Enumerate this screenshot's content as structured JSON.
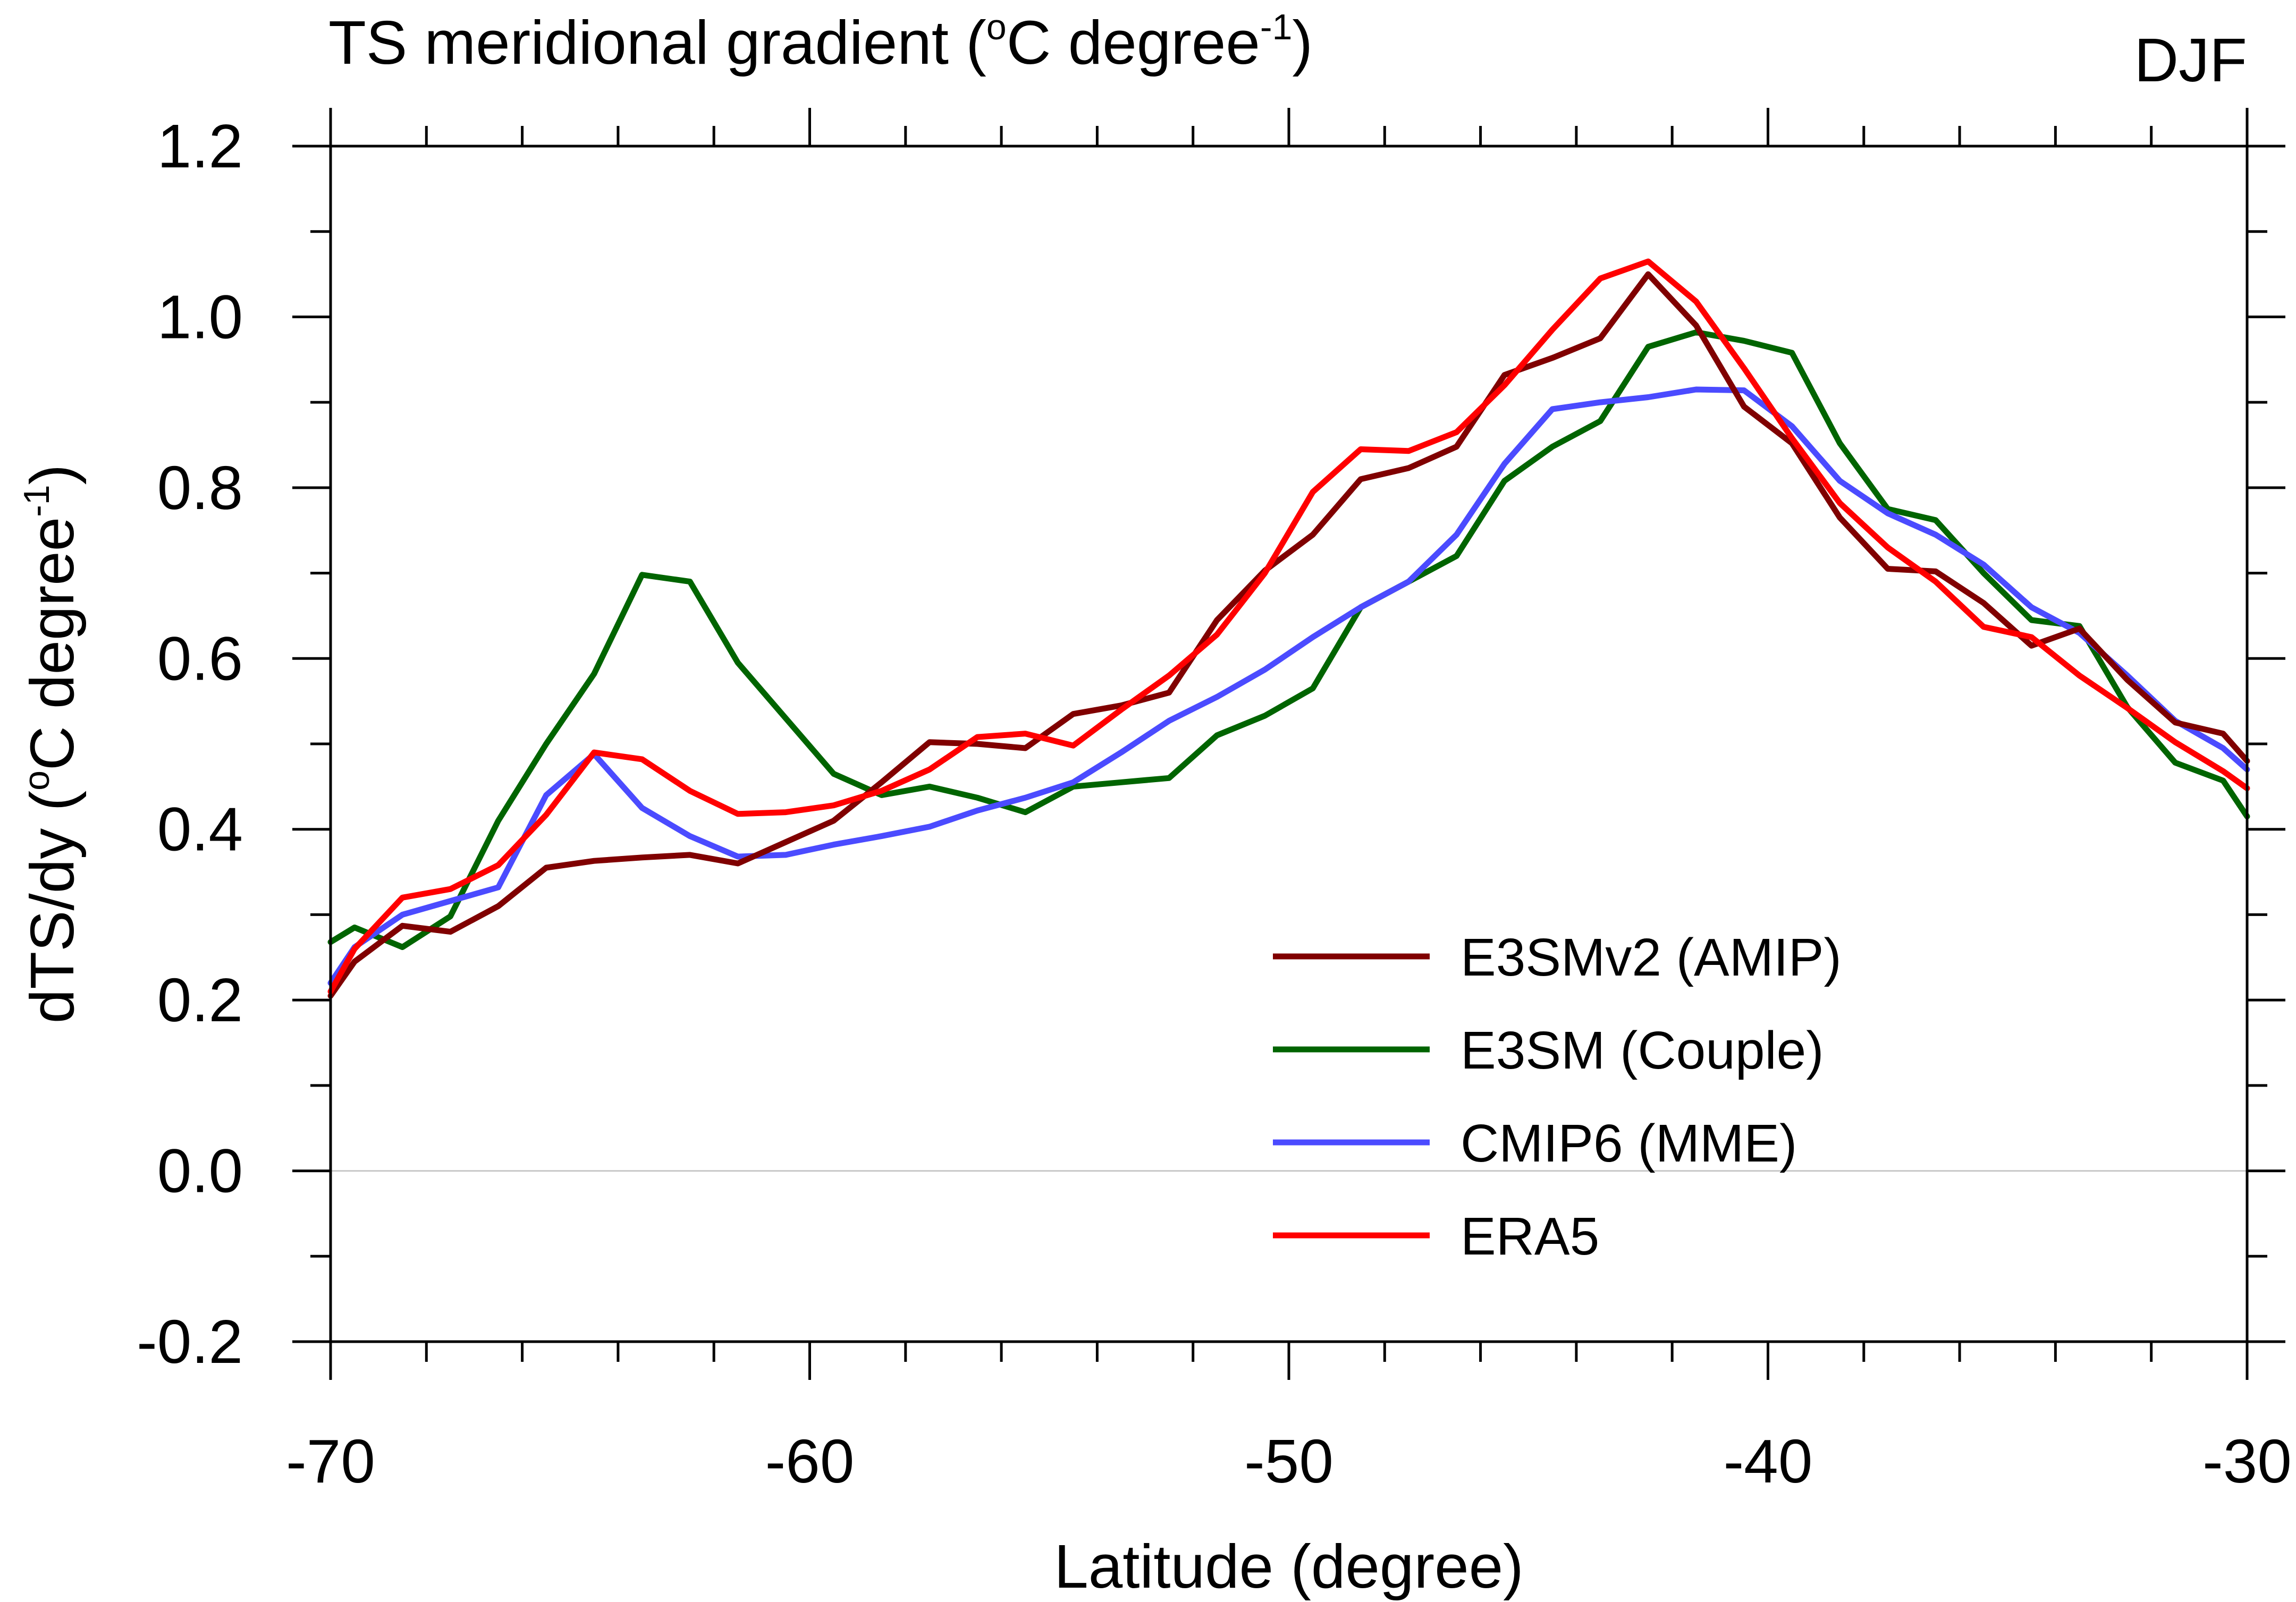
{
  "chart_data": {
    "type": "line",
    "title": "TS meridional gradient (°C degree-1)",
    "title_parts": {
      "prefix": "TS meridional gradient (",
      "degree_sup": "o",
      "mid": "C degree",
      "exp_sup": "-1",
      "suffix": ")"
    },
    "season": "DJF",
    "xlabel": "Latitude (degree)",
    "ylabel": "dTS/dy (°C degree-1)",
    "ylabel_parts": {
      "prefix": "dTS/dy (",
      "degree_sup": "o",
      "mid": "C degree",
      "exp_sup": "-1",
      "suffix": ")"
    },
    "xlim": [
      -70,
      -30
    ],
    "ylim": [
      -0.2,
      1.2
    ],
    "xticks": [
      -70,
      -60,
      -50,
      -40,
      -30
    ],
    "xtick_labels": [
      "-70",
      "-60",
      "-50",
      "-40",
      "-30"
    ],
    "yticks": [
      -0.2,
      0.0,
      0.2,
      0.4,
      0.6,
      0.8,
      1.0,
      1.2
    ],
    "ytick_labels": [
      "-0.2",
      "0.0",
      "0.2",
      "0.4",
      "0.6",
      "0.8",
      "1.0",
      "1.2"
    ],
    "zero_line": true,
    "grid": false,
    "legend_position": "bottom-right",
    "series": [
      {
        "name": "E3SMv2 (AMIP)",
        "color": "#800000",
        "x": [
          -70,
          -69.5,
          -68.5,
          -67.5,
          -66.5,
          -65.5,
          -64.5,
          -63.5,
          -62.5,
          -61.5,
          -60.5,
          -59.5,
          -58.5,
          -57.5,
          -56.5,
          -55.5,
          -54.5,
          -53.5,
          -52.5,
          -51.5,
          -50.5,
          -49.5,
          -48.5,
          -47.5,
          -46.5,
          -45.5,
          -44.5,
          -43.5,
          -42.5,
          -41.5,
          -40.5,
          -39.5,
          -38.5,
          -37.5,
          -36.5,
          -35.5,
          -34.5,
          -33.5,
          -32.5,
          -31.5,
          -30.5,
          -30
        ],
        "y": [
          0.205,
          0.245,
          0.287,
          0.28,
          0.31,
          0.355,
          0.363,
          0.367,
          0.37,
          0.36,
          0.385,
          0.41,
          0.455,
          0.502,
          0.5,
          0.495,
          0.535,
          0.545,
          0.56,
          0.645,
          0.703,
          0.745,
          0.81,
          0.823,
          0.848,
          0.932,
          0.952,
          0.975,
          1.05,
          0.99,
          0.895,
          0.852,
          0.765,
          0.705,
          0.702,
          0.665,
          0.615,
          0.635,
          0.575,
          0.525,
          0.512,
          0.48
        ]
      },
      {
        "name": "E3SM (Couple)",
        "color": "#006400",
        "x": [
          -70,
          -69.5,
          -68.5,
          -67.5,
          -66.5,
          -65.5,
          -64.5,
          -63.5,
          -62.5,
          -61.5,
          -60.5,
          -59.5,
          -58.5,
          -57.5,
          -56.5,
          -55.5,
          -54.5,
          -53.5,
          -52.5,
          -51.5,
          -50.5,
          -49.5,
          -48.5,
          -47.5,
          -46.5,
          -45.5,
          -44.5,
          -43.5,
          -42.5,
          -41.5,
          -40.5,
          -39.5,
          -38.5,
          -37.5,
          -36.5,
          -35.5,
          -34.5,
          -33.5,
          -32.5,
          -31.5,
          -30.5,
          -30
        ],
        "y": [
          0.268,
          0.285,
          0.262,
          0.298,
          0.41,
          0.5,
          0.582,
          0.698,
          0.69,
          0.595,
          0.53,
          0.465,
          0.44,
          0.45,
          0.437,
          0.42,
          0.45,
          0.455,
          0.46,
          0.51,
          0.533,
          0.565,
          0.66,
          0.69,
          0.72,
          0.808,
          0.848,
          0.878,
          0.965,
          0.982,
          0.972,
          0.958,
          0.852,
          0.775,
          0.762,
          0.7,
          0.645,
          0.638,
          0.543,
          0.478,
          0.457,
          0.415
        ]
      },
      {
        "name": "CMIP6 (MME)",
        "color": "#4B4BFF",
        "x": [
          -70,
          -69.5,
          -68.5,
          -67.5,
          -66.5,
          -65.5,
          -64.5,
          -63.5,
          -62.5,
          -61.5,
          -60.5,
          -59.5,
          -58.5,
          -57.5,
          -56.5,
          -55.5,
          -54.5,
          -53.5,
          -52.5,
          -51.5,
          -50.5,
          -49.5,
          -48.5,
          -47.5,
          -46.5,
          -45.5,
          -44.5,
          -43.5,
          -42.5,
          -41.5,
          -40.5,
          -39.5,
          -38.5,
          -37.5,
          -36.5,
          -35.5,
          -34.5,
          -33.5,
          -32.5,
          -31.5,
          -30.5,
          -30
        ],
        "y": [
          0.22,
          0.262,
          0.3,
          0.316,
          0.332,
          0.44,
          0.488,
          0.425,
          0.392,
          0.368,
          0.37,
          0.382,
          0.392,
          0.403,
          0.422,
          0.437,
          0.455,
          0.49,
          0.527,
          0.555,
          0.587,
          0.625,
          0.66,
          0.69,
          0.745,
          0.828,
          0.892,
          0.9,
          0.906,
          0.915,
          0.914,
          0.872,
          0.808,
          0.77,
          0.745,
          0.71,
          0.66,
          0.63,
          0.58,
          0.527,
          0.495,
          0.47
        ]
      },
      {
        "name": "ERA5",
        "color": "#FF0000",
        "x": [
          -70,
          -69.5,
          -68.5,
          -67.5,
          -66.5,
          -65.5,
          -64.5,
          -63.5,
          -62.5,
          -61.5,
          -60.5,
          -59.5,
          -58.5,
          -57.5,
          -56.5,
          -55.5,
          -54.5,
          -53.5,
          -52.5,
          -51.5,
          -50.5,
          -49.5,
          -48.5,
          -47.5,
          -46.5,
          -45.5,
          -44.5,
          -43.5,
          -42.5,
          -41.5,
          -40.5,
          -39.5,
          -38.5,
          -37.5,
          -36.5,
          -35.5,
          -34.5,
          -33.5,
          -32.5,
          -31.5,
          -30.5,
          -30
        ],
        "y": [
          0.21,
          0.26,
          0.32,
          0.33,
          0.358,
          0.417,
          0.49,
          0.482,
          0.445,
          0.418,
          0.42,
          0.428,
          0.445,
          0.47,
          0.508,
          0.512,
          0.498,
          0.54,
          0.58,
          0.628,
          0.7,
          0.795,
          0.845,
          0.843,
          0.865,
          0.92,
          0.985,
          1.045,
          1.065,
          1.018,
          0.94,
          0.858,
          0.782,
          0.73,
          0.69,
          0.637,
          0.625,
          0.58,
          0.542,
          0.502,
          0.468,
          0.448
        ]
      }
    ]
  }
}
